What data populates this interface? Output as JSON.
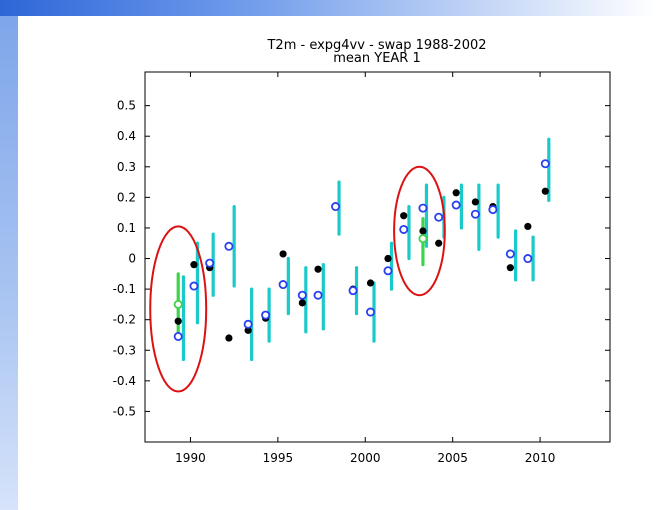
{
  "theme": {
    "top_band_color": "#2e66d8",
    "side_band_color": "#a7c3f1"
  },
  "chart_data": {
    "type": "scatter",
    "title": "T2m  -  expg4vv  -  swap 1988-2002",
    "subtitle": "mean YEAR 1",
    "xlabel": "",
    "ylabel": "",
    "xlim": [
      1987.4,
      2014.0
    ],
    "ylim": [
      -0.6,
      0.61
    ],
    "x_ticks": [
      1990,
      1995,
      2000,
      2005,
      2010
    ],
    "y_ticks": [
      -0.5,
      -0.4,
      -0.3,
      -0.2,
      -0.1,
      0,
      0.1,
      0.2,
      0.3,
      0.4,
      0.5
    ],
    "grid": false,
    "colors": {
      "black_series": "#000000",
      "blue_series": "#2a3ff0",
      "green_series": "#3fd34a",
      "range_bars": "#1ac9c9",
      "green_bars": "#3fd34a",
      "highlight": "#dd1111"
    },
    "series": [
      {
        "marker": "filled-black-circle",
        "points": [
          {
            "x": 1989.3,
            "y": -0.205
          },
          {
            "x": 1990.2,
            "y": -0.02
          },
          {
            "x": 1991.1,
            "y": -0.03
          },
          {
            "x": 1992.2,
            "y": -0.26
          },
          {
            "x": 1993.3,
            "y": -0.235
          },
          {
            "x": 1994.3,
            "y": -0.195
          },
          {
            "x": 1995.3,
            "y": 0.015
          },
          {
            "x": 1996.4,
            "y": -0.145
          },
          {
            "x": 1997.3,
            "y": -0.035
          },
          {
            "x": 1998.3,
            "y": 0.17
          },
          {
            "x": 1999.3,
            "y": -0.1
          },
          {
            "x": 2000.3,
            "y": -0.08
          },
          {
            "x": 2001.3,
            "y": 0.0
          },
          {
            "x": 2002.2,
            "y": 0.14
          },
          {
            "x": 2003.3,
            "y": 0.09
          },
          {
            "x": 2004.2,
            "y": 0.05
          },
          {
            "x": 2005.2,
            "y": 0.215
          },
          {
            "x": 2006.3,
            "y": 0.185
          },
          {
            "x": 2007.3,
            "y": 0.17
          },
          {
            "x": 2008.3,
            "y": -0.03
          },
          {
            "x": 2009.3,
            "y": 0.105
          },
          {
            "x": 2010.3,
            "y": 0.22
          }
        ]
      },
      {
        "marker": "open-blue-circle",
        "points": [
          {
            "x": 1989.3,
            "y": -0.255
          },
          {
            "x": 1990.2,
            "y": -0.09
          },
          {
            "x": 1991.1,
            "y": -0.015
          },
          {
            "x": 1992.2,
            "y": 0.04
          },
          {
            "x": 1993.3,
            "y": -0.215
          },
          {
            "x": 1994.3,
            "y": -0.185
          },
          {
            "x": 1995.3,
            "y": -0.085
          },
          {
            "x": 1996.4,
            "y": -0.12
          },
          {
            "x": 1997.3,
            "y": -0.12
          },
          {
            "x": 1998.3,
            "y": 0.17
          },
          {
            "x": 1999.3,
            "y": -0.105
          },
          {
            "x": 2000.3,
            "y": -0.175
          },
          {
            "x": 2001.3,
            "y": -0.04
          },
          {
            "x": 2002.2,
            "y": 0.095
          },
          {
            "x": 2003.3,
            "y": 0.165
          },
          {
            "x": 2004.2,
            "y": 0.135
          },
          {
            "x": 2005.2,
            "y": 0.175
          },
          {
            "x": 2006.3,
            "y": 0.145
          },
          {
            "x": 2007.3,
            "y": 0.16
          },
          {
            "x": 2008.3,
            "y": 0.015
          },
          {
            "x": 2009.3,
            "y": 0.0
          },
          {
            "x": 2010.3,
            "y": 0.31
          }
        ]
      },
      {
        "marker": "open-green-circle",
        "points": [
          {
            "x": 1989.3,
            "y": -0.15
          },
          {
            "x": 2003.3,
            "y": 0.065
          }
        ]
      }
    ],
    "ranges": [
      {
        "x": 1989.6,
        "low": -0.33,
        "high": -0.06
      },
      {
        "x": 1990.4,
        "low": -0.21,
        "high": 0.05
      },
      {
        "x": 1991.3,
        "low": -0.12,
        "high": 0.08
      },
      {
        "x": 1992.5,
        "low": -0.09,
        "high": 0.17
      },
      {
        "x": 1993.5,
        "low": -0.33,
        "high": -0.1
      },
      {
        "x": 1994.5,
        "low": -0.27,
        "high": -0.1
      },
      {
        "x": 1995.6,
        "low": -0.18,
        "high": 0.0
      },
      {
        "x": 1996.6,
        "low": -0.24,
        "high": -0.03
      },
      {
        "x": 1997.6,
        "low": -0.23,
        "high": -0.02
      },
      {
        "x": 1998.5,
        "low": 0.08,
        "high": 0.25
      },
      {
        "x": 1999.5,
        "low": -0.18,
        "high": -0.03
      },
      {
        "x": 2000.5,
        "low": -0.27,
        "high": -0.08
      },
      {
        "x": 2001.5,
        "low": -0.1,
        "high": 0.05
      },
      {
        "x": 2002.5,
        "low": 0.0,
        "high": 0.17
      },
      {
        "x": 2003.5,
        "low": 0.04,
        "high": 0.24
      },
      {
        "x": 2004.5,
        "low": 0.07,
        "high": 0.2
      },
      {
        "x": 2005.5,
        "low": 0.1,
        "high": 0.24
      },
      {
        "x": 2006.5,
        "low": 0.03,
        "high": 0.24
      },
      {
        "x": 2007.6,
        "low": 0.07,
        "high": 0.24
      },
      {
        "x": 2008.6,
        "low": -0.07,
        "high": 0.09
      },
      {
        "x": 2009.6,
        "low": -0.07,
        "high": 0.07
      },
      {
        "x": 2010.5,
        "low": 0.19,
        "high": 0.39
      }
    ],
    "green_ranges": [
      {
        "x": 1989.3,
        "low": -0.26,
        "high": -0.05
      },
      {
        "x": 2003.3,
        "low": -0.02,
        "high": 0.13
      }
    ],
    "highlights": [
      {
        "x": 1989.3,
        "y": -0.165,
        "rx": 1.6,
        "ry": 0.27
      },
      {
        "x": 2003.1,
        "y": 0.09,
        "rx": 1.45,
        "ry": 0.21
      }
    ]
  }
}
